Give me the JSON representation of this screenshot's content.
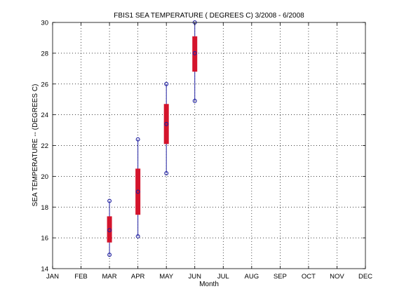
{
  "chart_data": {
    "type": "box",
    "title": "FBIS1  SEA TEMPERATURE  ( DEGREES C) 3/2008 - 6/2008",
    "xlabel": "Month",
    "ylabel": "SEA TEMPERATURE -- (DEGREES C)",
    "categories": [
      "JAN",
      "FEB",
      "MAR",
      "APR",
      "MAY",
      "JUN",
      "JUL",
      "AUG",
      "SEP",
      "OCT",
      "NOV",
      "DEC"
    ],
    "ylim": [
      14,
      30
    ],
    "yticks": [
      "14",
      "16",
      "18",
      "20",
      "22",
      "24",
      "26",
      "28",
      "30"
    ],
    "grid": true,
    "boxes": [
      {
        "category": "MAR",
        "min": 14.9,
        "q1": 15.7,
        "median": 16.5,
        "q3": 17.4,
        "max": 18.4
      },
      {
        "category": "APR",
        "min": 16.1,
        "q1": 17.5,
        "median": 19.0,
        "q3": 20.5,
        "max": 22.4
      },
      {
        "category": "MAY",
        "min": 20.2,
        "q1": 22.1,
        "median": 23.4,
        "q3": 24.7,
        "max": 26.0
      },
      {
        "category": "JUN",
        "min": 24.9,
        "q1": 26.8,
        "median": 28.0,
        "q3": 29.1,
        "max": 30.0
      }
    ],
    "colors": {
      "box": "#d4142c",
      "whisker": "#1f1fa0",
      "marker": "#1f1fa0",
      "grid": "#000000",
      "axis": "#000000"
    }
  }
}
